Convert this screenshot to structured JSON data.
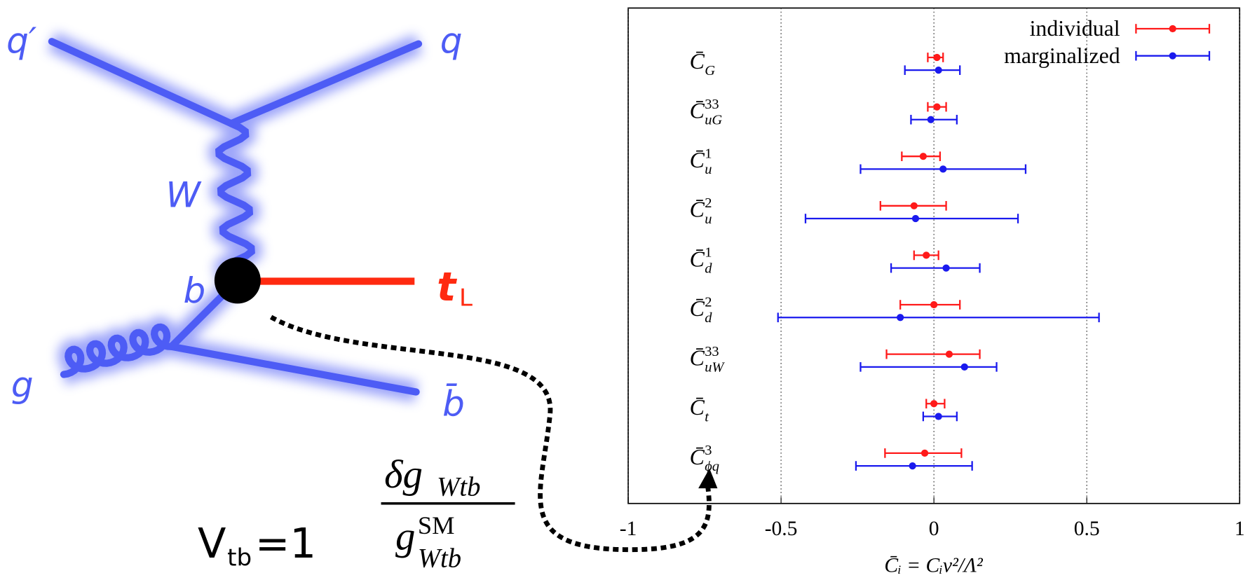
{
  "diagram": {
    "q_prime": "q′",
    "q": "q",
    "w": "W",
    "b": "b",
    "t": "t",
    "t_sub": "L",
    "g": "g",
    "b_bar": "b̄",
    "vtb": "V",
    "vtb_sub": "tb",
    "vtb_rest": "=1",
    "fraction_top": "δg",
    "fraction_top_sub": "Wtb",
    "fraction_bottom": "g",
    "fraction_bottom_sup": "SM",
    "fraction_bottom_sub": "Wtb"
  },
  "chart_data": {
    "type": "errorbar",
    "orientation": "horizontal",
    "x_label": "C̄ᵢ = Cᵢv²/Λ²",
    "categories": [
      {
        "base": "C̄",
        "sub": "G"
      },
      {
        "base": "C̄",
        "sup": "33",
        "sub": "uG"
      },
      {
        "base": "C̄",
        "sup": "1",
        "sub": "u"
      },
      {
        "base": "C̄",
        "sup": "2",
        "sub": "u"
      },
      {
        "base": "C̄",
        "sup": "1",
        "sub": "d"
      },
      {
        "base": "C̄",
        "sup": "2",
        "sub": "d"
      },
      {
        "base": "C̄",
        "sup": "33",
        "sub": "uW"
      },
      {
        "base": "C̄",
        "sub": "t"
      },
      {
        "base": "C̄",
        "sup": "3",
        "sub": "ϕq"
      }
    ],
    "series": [
      {
        "name": "individual",
        "color": "#ff1a1a",
        "values": [
          0.01,
          0.01,
          -0.035,
          -0.065,
          -0.025,
          0.0,
          0.05,
          0.0,
          -0.03
        ],
        "low": [
          -0.02,
          -0.02,
          -0.105,
          -0.175,
          -0.065,
          -0.11,
          -0.155,
          -0.025,
          -0.16
        ],
        "high": [
          0.03,
          0.04,
          0.02,
          0.04,
          0.015,
          0.085,
          0.15,
          0.035,
          0.09
        ]
      },
      {
        "name": "marginalized",
        "color": "#1a1aee",
        "values": [
          0.015,
          -0.01,
          0.03,
          -0.06,
          0.04,
          -0.11,
          0.1,
          0.015,
          -0.07
        ],
        "low": [
          -0.095,
          -0.075,
          -0.24,
          -0.42,
          -0.14,
          -0.51,
          -0.24,
          -0.035,
          -0.255
        ],
        "high": [
          0.085,
          0.075,
          0.3,
          0.275,
          0.15,
          0.54,
          0.205,
          0.075,
          0.125
        ]
      }
    ],
    "xlim": [
      -1,
      1
    ],
    "xticks": [
      -1,
      -0.5,
      0,
      0.5,
      1
    ],
    "grid": true,
    "legend": "upper right"
  }
}
